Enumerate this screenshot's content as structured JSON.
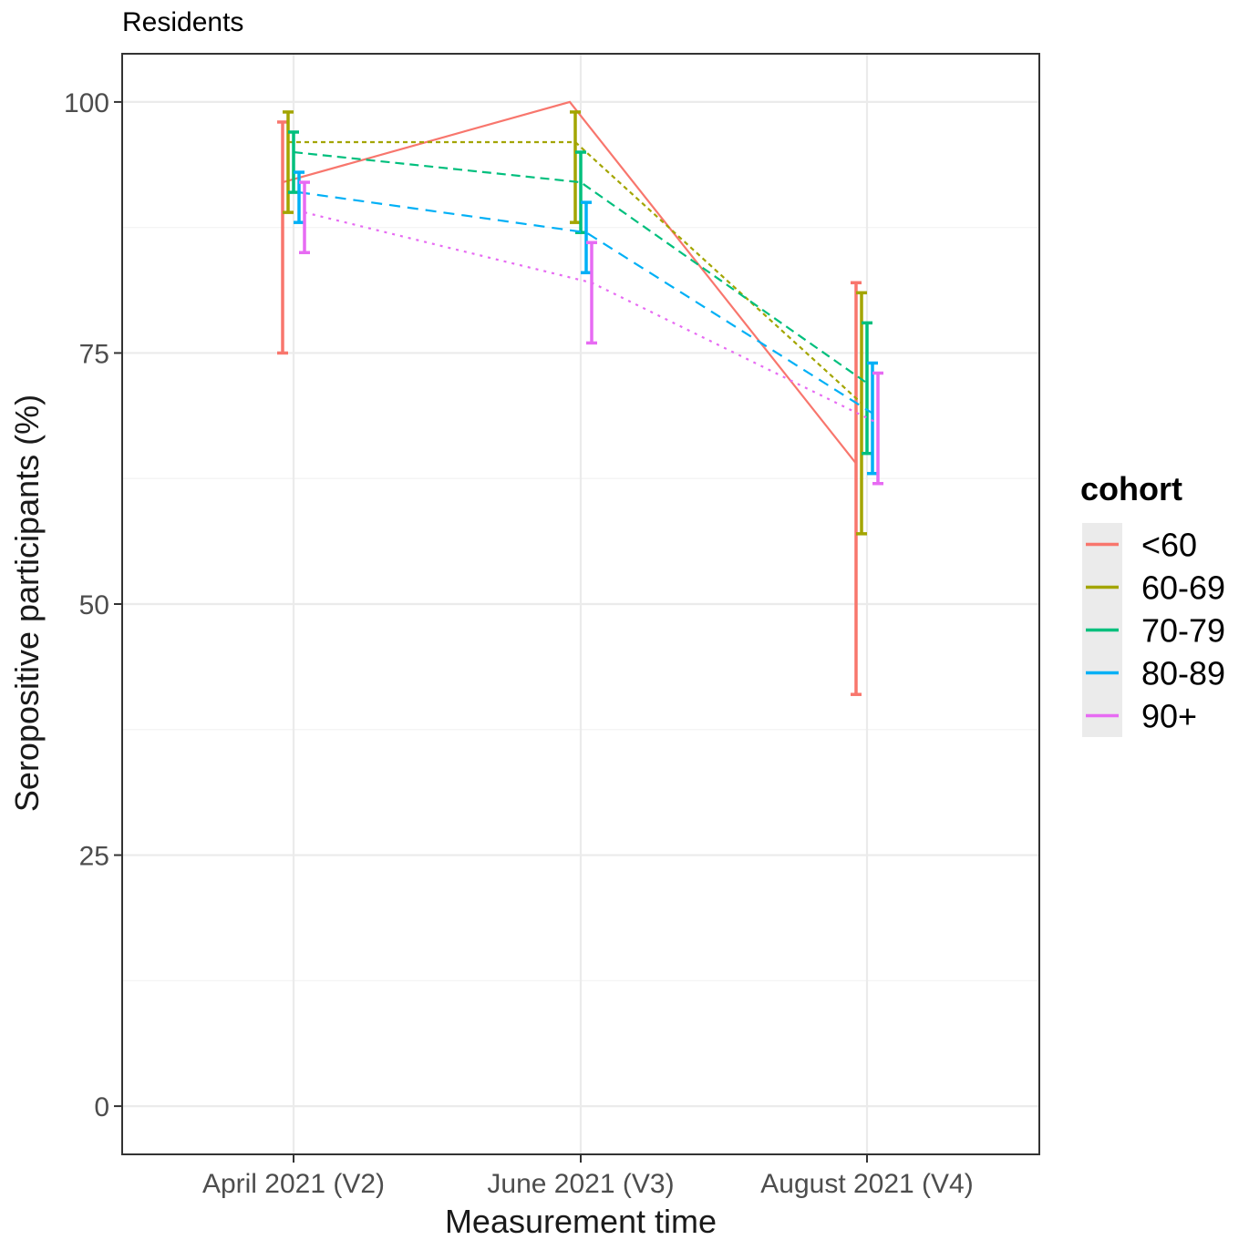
{
  "chart_data": {
    "type": "line",
    "title": "Residents",
    "xlabel": "Measurement time",
    "ylabel": "Seropositive participants (%)",
    "categories": [
      "April 2021 (V2)",
      "June 2021 (V3)",
      "August 2021 (V4)"
    ],
    "yticks": [
      0,
      25,
      50,
      75,
      100
    ],
    "ylim": [
      -4.8,
      104.8
    ],
    "grid": true,
    "legend": {
      "title": "cohort",
      "position": "right"
    },
    "series": [
      {
        "name": "<60",
        "color": "#F8766D",
        "linestyle": "solid",
        "values": [
          92,
          100,
          64
        ],
        "lower": [
          75,
          null,
          41
        ],
        "upper": [
          98,
          null,
          82
        ]
      },
      {
        "name": "60-69",
        "color": "#A3A500",
        "linestyle": "dotted-short",
        "values": [
          96,
          96,
          70
        ],
        "lower": [
          89,
          88,
          57
        ],
        "upper": [
          99,
          99,
          81
        ]
      },
      {
        "name": "70-79",
        "color": "#00BF7D",
        "linestyle": "dashed",
        "values": [
          95,
          92,
          72
        ],
        "lower": [
          91,
          87,
          65
        ],
        "upper": [
          97,
          95,
          78
        ]
      },
      {
        "name": "80-89",
        "color": "#00B0F6",
        "linestyle": "dashed-long",
        "values": [
          91,
          87,
          69
        ],
        "lower": [
          88,
          83,
          63
        ],
        "upper": [
          93,
          90,
          74
        ]
      },
      {
        "name": "90+",
        "color": "#E76BF3",
        "linestyle": "dotted",
        "values": [
          89,
          82,
          68
        ],
        "lower": [
          85,
          76,
          62
        ],
        "upper": [
          92,
          86,
          73
        ]
      }
    ]
  }
}
